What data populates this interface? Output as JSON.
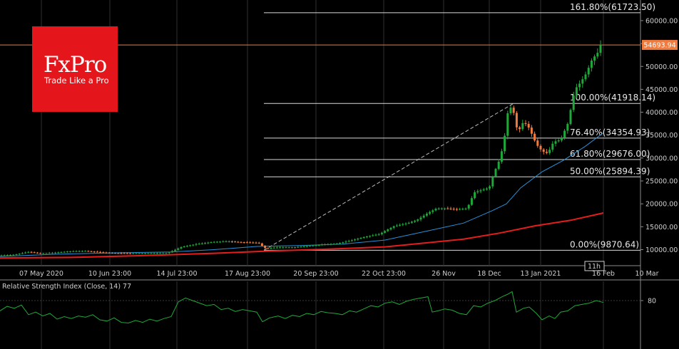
{
  "brand": {
    "name": "FxPro",
    "tagline": "Trade Like a Pro",
    "color": "#e5161b"
  },
  "current_price": {
    "label": "54693.94",
    "value": 54693.94,
    "color": "#f07b3f"
  },
  "colors": {
    "up": "#1fa83a",
    "down": "#f07b3f",
    "ma_fast": "#2a8fd6",
    "ma_slow": "#e41d1d",
    "rsi": "#1fa83a",
    "fib": "#d9d9d9",
    "grid": "#2f2f2f"
  },
  "chart_data": [
    {
      "type": "candlestick",
      "title": "",
      "ylim": [
        6500,
        64500
      ],
      "y_ticks": [
        "10000.00",
        "15000.00",
        "20000.00",
        "25000.00",
        "30000.00",
        "35000.00",
        "40000.00",
        "45000.00",
        "50000.00",
        "55000.00",
        "60000.00"
      ],
      "x_ticks": [
        "07 May 2020",
        "10 Jun 23:00",
        "14 Jul 23:00",
        "17 Aug 23:00",
        "20 Sep 23:00",
        "22 Oct 23:00",
        "26 Nov",
        "18 Dec",
        "13 Jan 2021",
        "16 Feb",
        "10 Mar"
      ],
      "x_tick_marker": "11h",
      "price_path": [
        [
          0,
          8700
        ],
        [
          20,
          8900
        ],
        [
          40,
          9500
        ],
        [
          55,
          9200
        ],
        [
          75,
          9300
        ],
        [
          95,
          9600
        ],
        [
          120,
          9700
        ],
        [
          150,
          9300
        ],
        [
          180,
          9200
        ],
        [
          210,
          9200
        ],
        [
          235,
          9250
        ],
        [
          255,
          10600
        ],
        [
          275,
          11200
        ],
        [
          300,
          11700
        ],
        [
          320,
          11800
        ],
        [
          340,
          11600
        ],
        [
          362,
          11500
        ],
        [
          372,
          10300
        ],
        [
          392,
          10500
        ],
        [
          412,
          10500
        ],
        [
          432,
          10800
        ],
        [
          452,
          11100
        ],
        [
          472,
          11300
        ],
        [
          492,
          12000
        ],
        [
          512,
          12800
        ],
        [
          532,
          13400
        ],
        [
          552,
          15100
        ],
        [
          572,
          15800
        ],
        [
          585,
          16500
        ],
        [
          600,
          18000
        ],
        [
          612,
          19000
        ],
        [
          625,
          19000
        ],
        [
          640,
          18800
        ],
        [
          655,
          19000
        ],
        [
          665,
          22500
        ],
        [
          675,
          23000
        ],
        [
          686,
          23500
        ],
        [
          692,
          26500
        ],
        [
          700,
          29500
        ],
        [
          706,
          33000
        ],
        [
          712,
          40000
        ],
        [
          718,
          41500
        ],
        [
          726,
          35500
        ],
        [
          734,
          38000
        ],
        [
          742,
          36500
        ],
        [
          752,
          33000
        ],
        [
          760,
          31500
        ],
        [
          768,
          31000
        ],
        [
          776,
          33500
        ],
        [
          786,
          34000
        ],
        [
          796,
          37500
        ],
        [
          806,
          45000
        ],
        [
          814,
          46500
        ],
        [
          822,
          48500
        ],
        [
          830,
          51500
        ],
        [
          838,
          53000
        ],
        [
          846,
          56500
        ]
      ],
      "ma_fast": [
        [
          0,
          8500
        ],
        [
          80,
          9000
        ],
        [
          160,
          9300
        ],
        [
          240,
          9500
        ],
        [
          300,
          10000
        ],
        [
          360,
          10700
        ],
        [
          420,
          10900
        ],
        [
          480,
          11200
        ],
        [
          540,
          12100
        ],
        [
          600,
          14100
        ],
        [
          650,
          15800
        ],
        [
          690,
          18500
        ],
        [
          710,
          20000
        ],
        [
          730,
          23500
        ],
        [
          760,
          27000
        ],
        [
          790,
          29500
        ],
        [
          820,
          32500
        ],
        [
          846,
          35500
        ]
      ],
      "ma_slow": [
        [
          0,
          8200
        ],
        [
          100,
          8300
        ],
        [
          200,
          8700
        ],
        [
          300,
          9200
        ],
        [
          380,
          9700
        ],
        [
          460,
          10100
        ],
        [
          540,
          10600
        ],
        [
          600,
          11500
        ],
        [
          650,
          12300
        ],
        [
          700,
          13600
        ],
        [
          750,
          15200
        ],
        [
          800,
          16400
        ],
        [
          846,
          18000
        ]
      ],
      "fib_levels": [
        {
          "label": "0.00%(9870.64)",
          "value": 9870.64
        },
        {
          "label": "50.00%(25894.39)",
          "value": 25894.39
        },
        {
          "label": "61.80%(29676.00)",
          "value": 29676.0
        },
        {
          "label": "76.40%(34354.93)",
          "value": 34354.93
        },
        {
          "label": "100.00%(41918.14)",
          "value": 41918.14
        },
        {
          "label": "161.80%(61723.50)",
          "value": 61723.5
        }
      ],
      "trend_line": {
        "from": [
          370,
          9870.64
        ],
        "to": [
          720,
          41918.14
        ]
      }
    },
    {
      "type": "line",
      "title": "Relative Strength Index (Close, 14) 77",
      "ylim": [
        20,
        110
      ],
      "y_ticks": [
        "80"
      ],
      "reference_level": 80,
      "values": [
        [
          0,
          64
        ],
        [
          10,
          71
        ],
        [
          20,
          68
        ],
        [
          30,
          73
        ],
        [
          40,
          58
        ],
        [
          50,
          62
        ],
        [
          60,
          56
        ],
        [
          70,
          60
        ],
        [
          80,
          51
        ],
        [
          90,
          55
        ],
        [
          100,
          52
        ],
        [
          110,
          56
        ],
        [
          120,
          54
        ],
        [
          130,
          58
        ],
        [
          140,
          50
        ],
        [
          150,
          48
        ],
        [
          160,
          53
        ],
        [
          170,
          46
        ],
        [
          180,
          45
        ],
        [
          190,
          49
        ],
        [
          200,
          46
        ],
        [
          210,
          51
        ],
        [
          220,
          48
        ],
        [
          230,
          52
        ],
        [
          240,
          55
        ],
        [
          250,
          78
        ],
        [
          260,
          84
        ],
        [
          270,
          80
        ],
        [
          280,
          76
        ],
        [
          290,
          72
        ],
        [
          300,
          74
        ],
        [
          310,
          66
        ],
        [
          320,
          68
        ],
        [
          330,
          63
        ],
        [
          340,
          66
        ],
        [
          350,
          64
        ],
        [
          360,
          62
        ],
        [
          368,
          47
        ],
        [
          378,
          53
        ],
        [
          390,
          56
        ],
        [
          400,
          52
        ],
        [
          410,
          57
        ],
        [
          420,
          55
        ],
        [
          430,
          60
        ],
        [
          440,
          58
        ],
        [
          450,
          63
        ],
        [
          460,
          61
        ],
        [
          470,
          60
        ],
        [
          480,
          58
        ],
        [
          490,
          64
        ],
        [
          500,
          62
        ],
        [
          510,
          67
        ],
        [
          520,
          72
        ],
        [
          530,
          70
        ],
        [
          540,
          76
        ],
        [
          550,
          78
        ],
        [
          560,
          74
        ],
        [
          570,
          79
        ],
        [
          580,
          82
        ],
        [
          590,
          84
        ],
        [
          600,
          86
        ],
        [
          606,
          62
        ],
        [
          614,
          64
        ],
        [
          624,
          67
        ],
        [
          634,
          65
        ],
        [
          644,
          60
        ],
        [
          654,
          58
        ],
        [
          664,
          72
        ],
        [
          674,
          70
        ],
        [
          684,
          76
        ],
        [
          694,
          80
        ],
        [
          704,
          86
        ],
        [
          712,
          90
        ],
        [
          718,
          94
        ],
        [
          724,
          62
        ],
        [
          734,
          68
        ],
        [
          742,
          70
        ],
        [
          752,
          60
        ],
        [
          760,
          50
        ],
        [
          770,
          56
        ],
        [
          778,
          52
        ],
        [
          786,
          62
        ],
        [
          796,
          64
        ],
        [
          806,
          72
        ],
        [
          816,
          74
        ],
        [
          826,
          76
        ],
        [
          836,
          80
        ],
        [
          846,
          77
        ]
      ]
    }
  ]
}
